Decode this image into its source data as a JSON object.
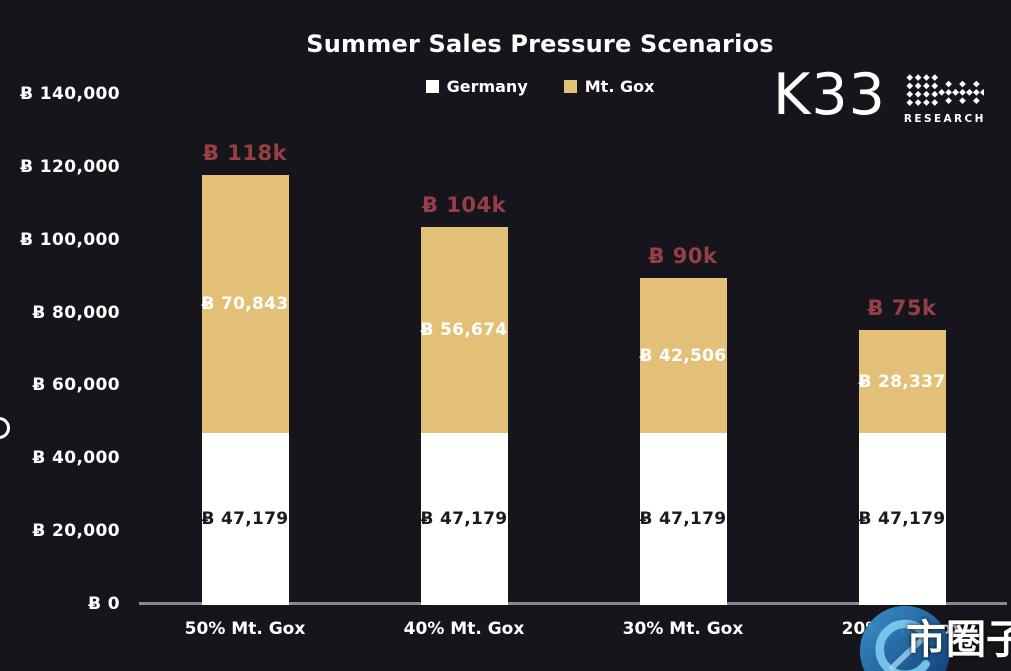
{
  "title": "Summer Sales Pressure Scenarios",
  "legend": {
    "items": [
      {
        "label": "Germany",
        "color": "#ffffff"
      },
      {
        "label": "Mt. Gox",
        "color": "#e2c078"
      }
    ]
  },
  "logo": {
    "name": "K33",
    "sub": "RESEARCH"
  },
  "watermark": {
    "text": "市圈子"
  },
  "axis_label_fragment": "O",
  "colors": {
    "background": "#17151c",
    "germany_bar": "#ffffff",
    "mtgox_bar": "#e2c078",
    "total_label": "#963f46",
    "axis_line": "#8b8990"
  },
  "chart_data": {
    "type": "bar",
    "stacked": true,
    "title": "Summer Sales Pressure Scenarios",
    "currency_symbol": "₿",
    "categories": [
      "50% Mt. Gox",
      "40% Mt. Gox",
      "30% Mt. Gox",
      "20% Mt. Gox"
    ],
    "series": [
      {
        "name": "Germany",
        "color": "#ffffff",
        "values": [
          47179,
          47179,
          47179,
          47179
        ],
        "value_labels": [
          "₿ 47,179",
          "₿ 47,179",
          "₿ 47,179",
          "₿ 47,179"
        ]
      },
      {
        "name": "Mt. Gox",
        "color": "#e2c078",
        "values": [
          70843,
          56674,
          42506,
          28337
        ],
        "value_labels": [
          "₿ 70,843",
          "₿ 56,674",
          "₿ 42,506",
          "₿ 28,337"
        ]
      }
    ],
    "totals": {
      "labels": [
        "₿ 118k",
        "₿ 104k",
        "₿ 90k",
        "₿ 75k"
      ],
      "color": "#963f46"
    },
    "y_axis": {
      "tick_labels": [
        "₿ 0",
        "₿ 20,000",
        "₿ 40,000",
        "₿ 60,000",
        "₿ 80,000",
        "₿ 100,000",
        "₿ 120,000",
        "₿ 140,000"
      ],
      "tick_values": [
        0,
        20000,
        40000,
        60000,
        80000,
        100000,
        120000,
        140000
      ],
      "ylim": [
        0,
        140000
      ]
    },
    "grid": false,
    "legend_position": "top"
  }
}
